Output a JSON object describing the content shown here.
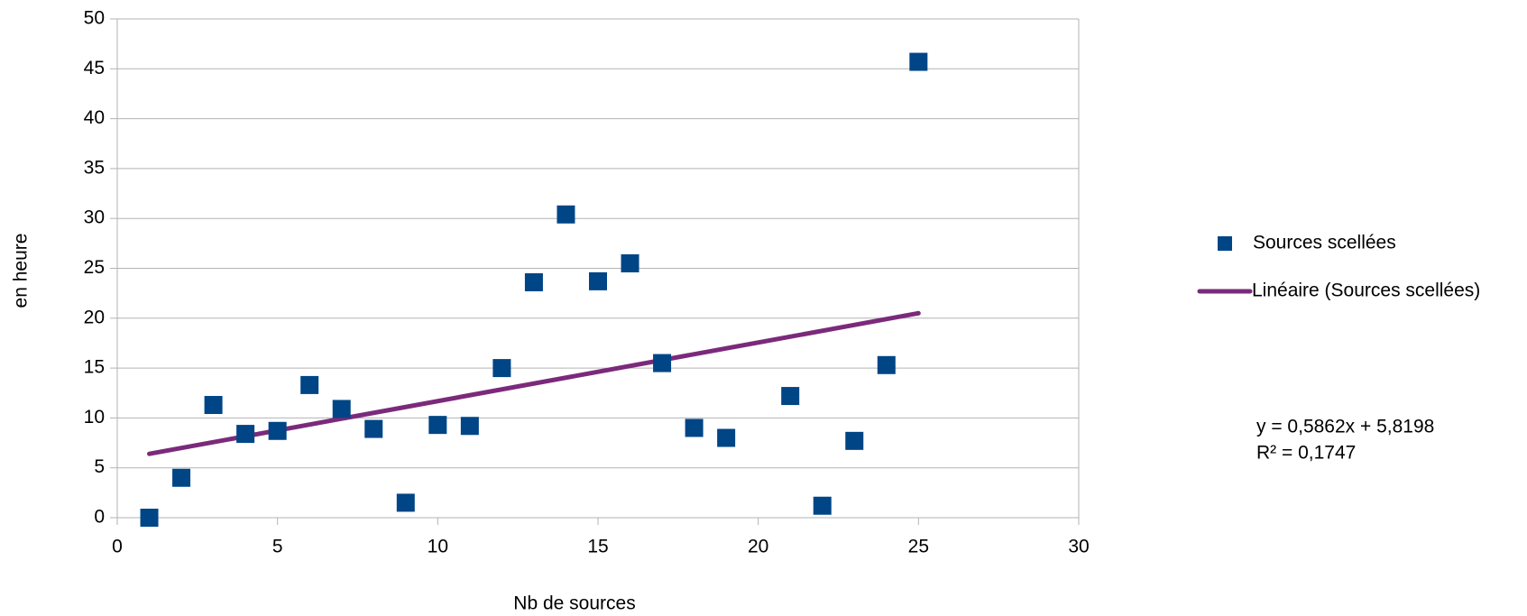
{
  "chart_data": {
    "type": "scatter",
    "x_label": "Nb de sources",
    "y_label": "en heure",
    "xlim": [
      0,
      30
    ],
    "xticks": [
      0,
      5,
      10,
      15,
      20,
      25,
      30
    ],
    "ylim": [
      0,
      50
    ],
    "yticks": [
      0,
      5,
      10,
      15,
      20,
      25,
      30,
      35,
      40,
      45,
      50
    ],
    "grid": true,
    "legend": "right",
    "series": [
      {
        "name": "Sources scellées",
        "color": "#004586",
        "mark": "square",
        "x": [
          1,
          2,
          3,
          4,
          5,
          6,
          7,
          8,
          9,
          10,
          11,
          12,
          13,
          14,
          15,
          16,
          17,
          18,
          19,
          21,
          22,
          23,
          24,
          25
        ],
        "values": [
          0,
          4.0,
          11.3,
          8.4,
          8.7,
          13.3,
          10.9,
          8.9,
          1.5,
          9.3,
          9.2,
          15.0,
          23.6,
          30.4,
          23.7,
          25.5,
          15.5,
          9.0,
          8.0,
          12.2,
          1.2,
          7.7,
          15.3,
          45.7
        ]
      },
      {
        "name": "Linéaire (Sources scellées)",
        "color": "#7b2a7b",
        "mark": "line",
        "x": [
          1,
          25
        ],
        "values": [
          6.4,
          20.5
        ]
      }
    ],
    "annotations": [
      "y = 0,5862x + 5,8198",
      "R² = 0,1747"
    ]
  }
}
